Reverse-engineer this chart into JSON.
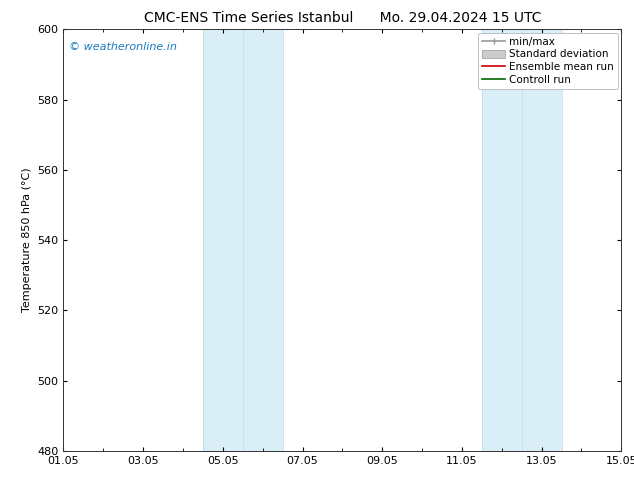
{
  "title": "CMC-ENS Time Series Istanbul      Mo. 29.04.2024 15 UTC",
  "ylabel": "Temperature 850 hPa (°C)",
  "ylim": [
    480,
    600
  ],
  "yticks": [
    480,
    500,
    520,
    540,
    560,
    580,
    600
  ],
  "xlim": [
    0,
    14
  ],
  "xtick_positions": [
    0,
    2,
    4,
    6,
    8,
    10,
    12,
    14
  ],
  "xtick_labels": [
    "01.05",
    "03.05",
    "05.05",
    "07.05",
    "09.05",
    "11.05",
    "13.05",
    "15.05"
  ],
  "minor_xtick_positions": [
    1,
    3,
    5,
    7,
    9,
    11,
    13
  ],
  "watermark_text": "© weatheronline.in",
  "watermark_color": "#1a7abf",
  "bg_color": "#ffffff",
  "plot_bg_color": "#ffffff",
  "shaded_bands": [
    {
      "xmin": 3.5,
      "xmax": 4.5,
      "color": "#daeef8"
    },
    {
      "xmin": 4.5,
      "xmax": 5.5,
      "color": "#daeef8"
    },
    {
      "xmin": 10.5,
      "xmax": 11.5,
      "color": "#daeef8"
    },
    {
      "xmin": 11.5,
      "xmax": 12.5,
      "color": "#daeef8"
    }
  ],
  "font_size_title": 10,
  "font_size_axis": 8,
  "font_size_ticks": 8,
  "font_size_legend": 7.5,
  "font_size_watermark": 8
}
